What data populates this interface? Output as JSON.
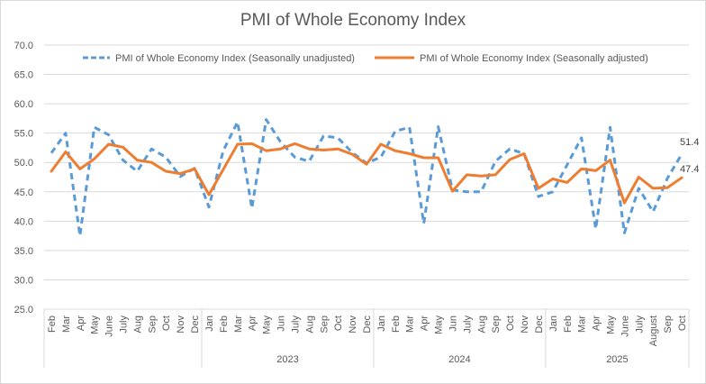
{
  "chart_data": {
    "type": "line",
    "title": "PMI of Whole Economy Index",
    "xlabel": "",
    "ylabel": "",
    "ylim": [
      25,
      70
    ],
    "y_ticks": [
      "25.0",
      "30.0",
      "35.0",
      "40.0",
      "45.0",
      "50.0",
      "55.0",
      "60.0",
      "65.0",
      "70.0"
    ],
    "y_tick_values": [
      25,
      30,
      35,
      40,
      45,
      50,
      55,
      60,
      65,
      70
    ],
    "grid": true,
    "legend_position": "top",
    "groups": [
      {
        "label": "",
        "months": [
          "Feb",
          "Mar",
          "Apr",
          "May",
          "June",
          "July",
          "Aug",
          "Sep",
          "Oct",
          "Nov",
          "Dec"
        ]
      },
      {
        "label": "2023",
        "months": [
          "Jan",
          "Feb",
          "Mar",
          "Apr",
          "May",
          "Jun",
          "July",
          "Aug",
          "Sep",
          "Oct",
          "Nov",
          "Dec"
        ]
      },
      {
        "label": "2024",
        "months": [
          "Jan",
          "Feb",
          "Mar",
          "Apr",
          "May",
          "Jun",
          "July",
          "Aug",
          "Sep",
          "Oct",
          "Nov",
          "Dec"
        ]
      },
      {
        "label": "2025",
        "months": [
          "Jan",
          "Feb",
          "Mar",
          "Apr",
          "May",
          "June",
          "July",
          "August",
          "Sep",
          "Oct"
        ]
      }
    ],
    "series": [
      {
        "name": "PMI of Whole Economy Index (Seasonally unadjusted)",
        "color": "#5b9bd5",
        "style": "dashed",
        "values": [
          51.6,
          55.0,
          37.5,
          56.0,
          54.7,
          50.4,
          48.5,
          52.3,
          50.9,
          47.6,
          49.0,
          42.4,
          52.0,
          56.9,
          42.2,
          57.3,
          53.5,
          50.9,
          50.2,
          54.5,
          54.2,
          51.7,
          49.9,
          50.9,
          55.3,
          56.0,
          39.6,
          56.1,
          45.3,
          45.0,
          45.0,
          50.2,
          52.3,
          51.5,
          44.2,
          45.0,
          49.6,
          54.2,
          38.7,
          56.0,
          38.0,
          45.6,
          41.6,
          47.3,
          51.4
        ],
        "last_label": "51.4"
      },
      {
        "name": "PMI of Whole Economy Index (Seasonally adjusted)",
        "color": "#ed7d31",
        "style": "solid",
        "values": [
          48.5,
          51.8,
          48.9,
          50.6,
          53.1,
          52.6,
          50.4,
          50.0,
          48.5,
          48.1,
          48.9,
          44.5,
          48.8,
          53.1,
          53.2,
          52.0,
          52.3,
          53.2,
          52.3,
          52.1,
          52.3,
          51.4,
          49.7,
          53.1,
          52.0,
          51.5,
          50.8,
          50.8,
          45.1,
          47.9,
          47.7,
          47.9,
          50.5,
          51.5,
          45.6,
          47.2,
          46.6,
          48.9,
          48.6,
          50.4,
          43.1,
          47.5,
          45.6,
          45.7,
          47.4
        ],
        "last_label": "47.4"
      }
    ]
  }
}
